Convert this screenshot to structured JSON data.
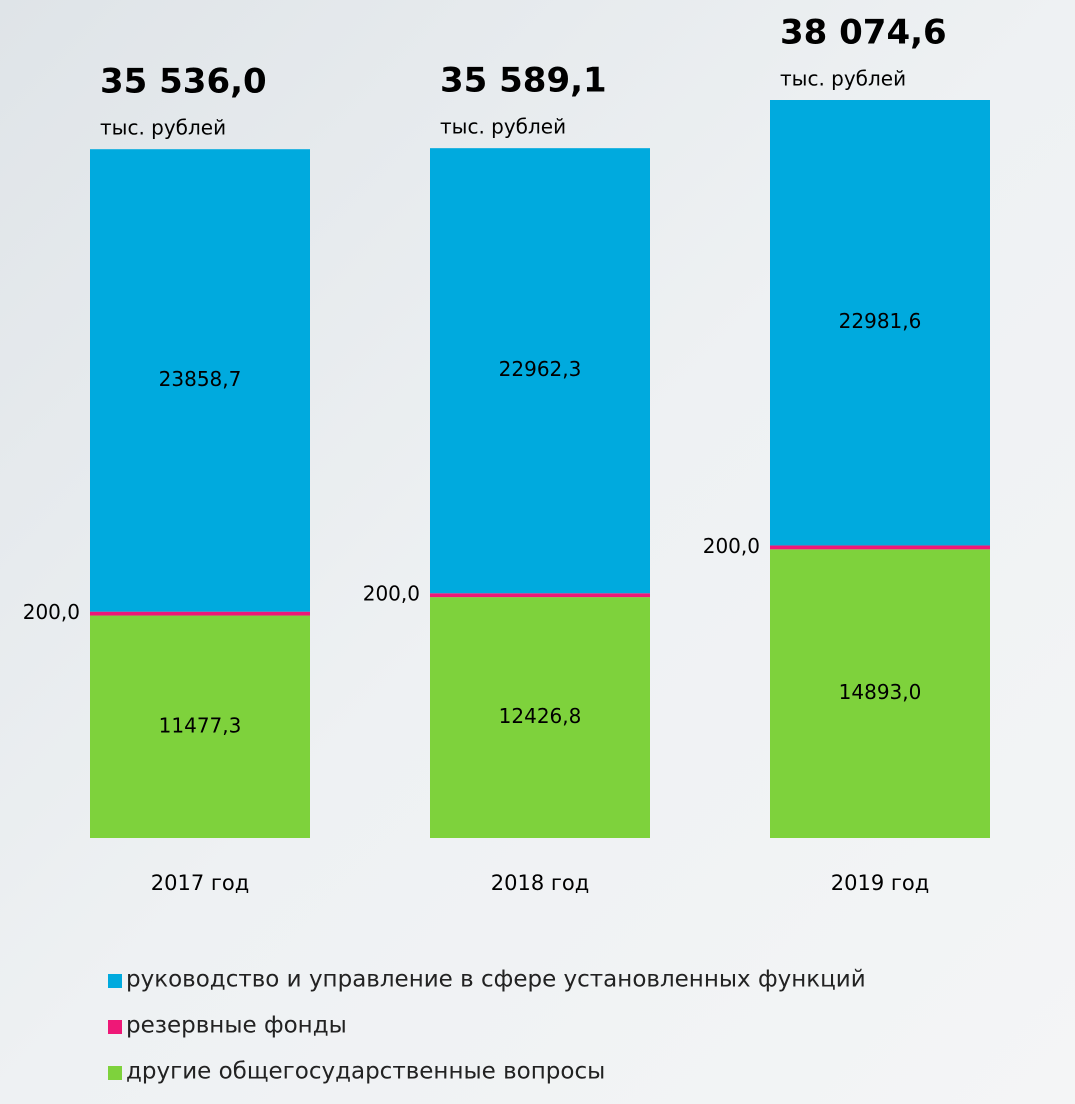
{
  "chart_data": {
    "type": "stacked_bar",
    "categories": [
      "2017 год",
      "2018 год",
      "2019 год"
    ],
    "series": [
      {
        "name": "другие общегосударственные вопросы",
        "color": "#7ed23c",
        "values": [
          11477.3,
          12426.8,
          14893.0
        ],
        "value_labels": [
          "11477,3",
          "12426,8",
          "14893,0"
        ]
      },
      {
        "name": "резервные фонды",
        "color": "#ee1877",
        "values": [
          200.0,
          200.0,
          200.0
        ],
        "value_labels": [
          "200,0",
          "200,0",
          "200,0"
        ]
      },
      {
        "name": "руководство и управление в сфере установленных функций",
        "color": "#00aade",
        "values": [
          23858.7,
          22962.3,
          22981.6
        ],
        "value_labels": [
          "23858,7",
          "22962,3",
          "22981,6"
        ]
      }
    ],
    "totals": {
      "values": [
        35536.0,
        35589.1,
        38074.6
      ],
      "value_labels": [
        "35 536,0",
        "35 589,1",
        "38 074,6"
      ]
    },
    "unit": "тыс. рублей",
    "legend_order": [
      2,
      1,
      0
    ]
  }
}
